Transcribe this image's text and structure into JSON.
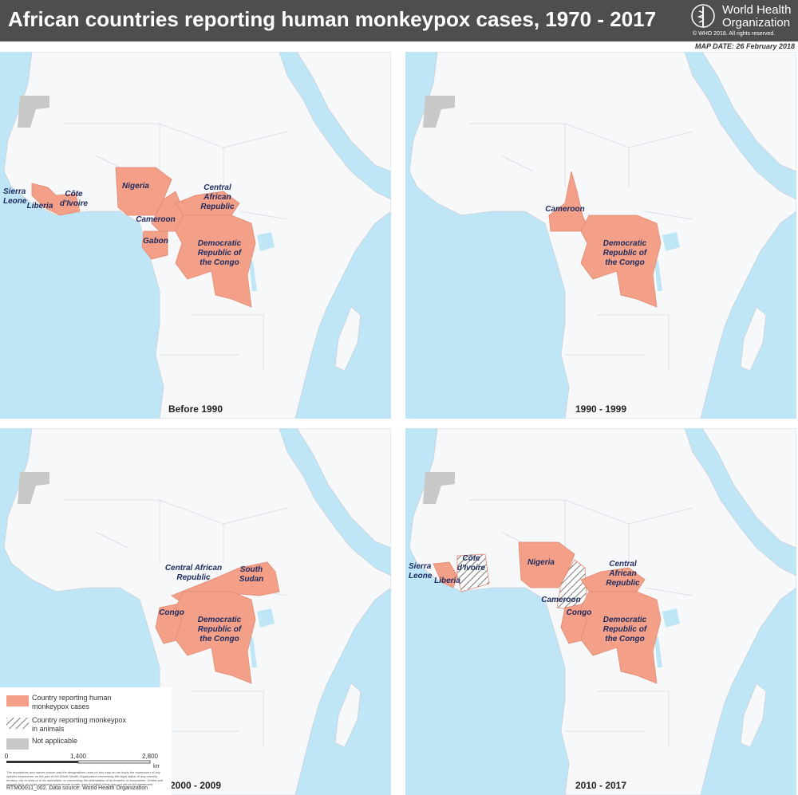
{
  "header": {
    "title": "African countries reporting human monkeypox cases, 1970 - 2017",
    "organization": "World Health Organization",
    "copyright": "© WHO 2018. All rights reserved.",
    "map_date": "MAP DATE: 26 February 2018"
  },
  "panels": [
    {
      "period": "Before 1990",
      "labels": [
        "Sierra Leone",
        "Liberia",
        "Côte d'Ivoire",
        "Nigeria",
        "Cameroon",
        "Central African Republic",
        "Gabon",
        "Democratic Republic of the Congo"
      ]
    },
    {
      "period": "1990 - 1999",
      "labels": [
        "Cameroon",
        "Democratic Republic of the Congo"
      ]
    },
    {
      "period": "2000 - 2009",
      "labels": [
        "Central African Republic",
        "South Sudan",
        "Congo",
        "Democratic Republic of the Congo"
      ]
    },
    {
      "period": "2010 - 2017",
      "labels": [
        "Sierra Leone",
        "Côte d'Ivoire",
        "Liberia",
        "Nigeria",
        "Cameroon",
        "Congo",
        "Central African Republic",
        "Democratic Republic of the Congo"
      ]
    }
  ],
  "legend": {
    "items": [
      "Country reporting human monkeypox cases",
      "Country reporting monkeypox in animals",
      "Not applicable"
    ]
  },
  "scale": {
    "ticks": [
      "0",
      "1,400",
      "2,800"
    ],
    "unit": "km"
  },
  "disclaimer": "The boundaries and names shown and the designations used on this map do not imply the expression of any opinion whatsoever on the part of the World Health Organization concerning the legal status of any country, territory, city or area or of its authorities, or concerning the delimitation of its frontiers or boundaries. Dotted and dashed lines on maps represent approximate border lines for which there may not yet be full agreement.",
  "source": "RTM00011_002. Data source: World Health Organization"
}
